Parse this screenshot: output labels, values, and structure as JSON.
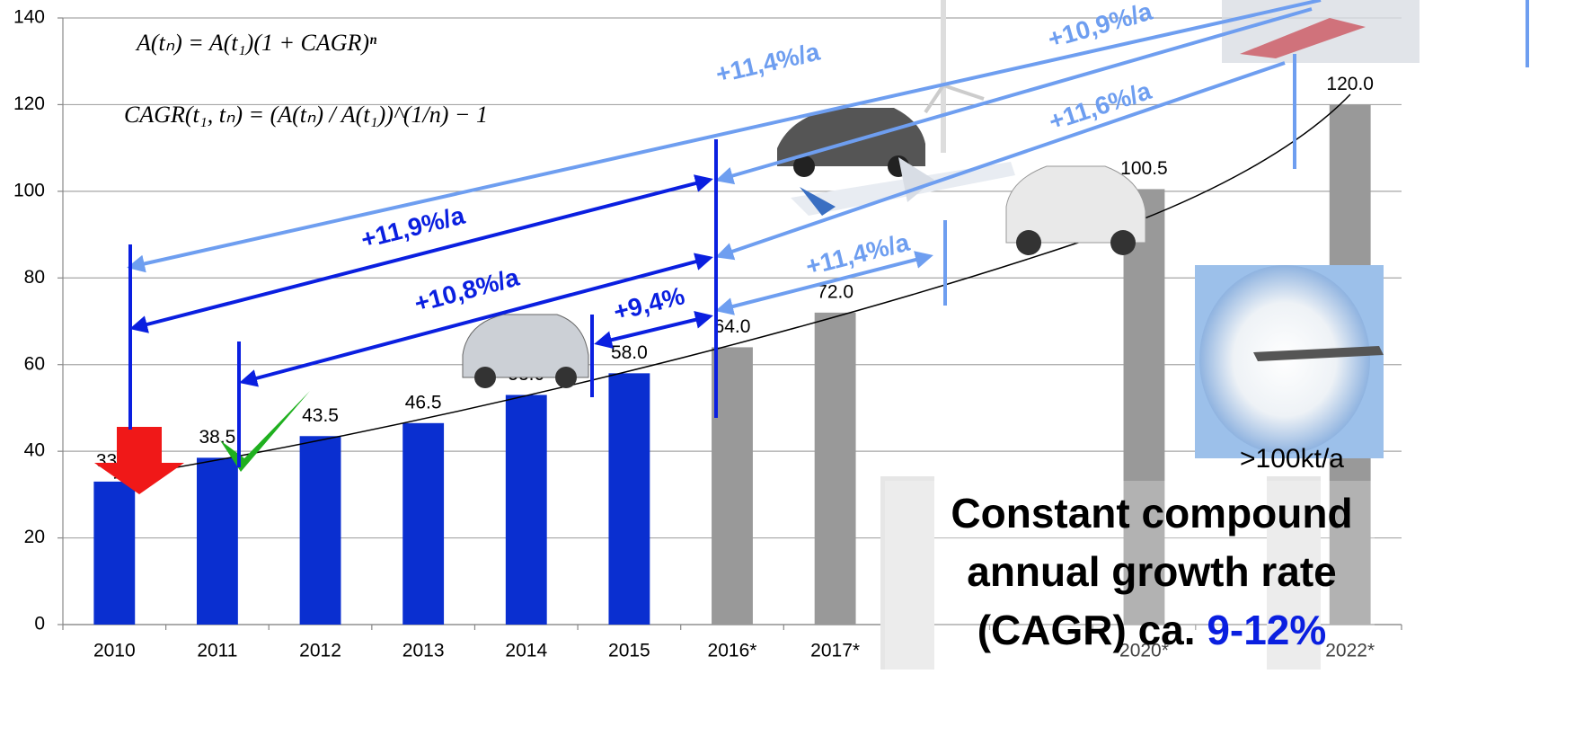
{
  "chart_data": {
    "type": "bar",
    "categories": [
      "2010",
      "2011",
      "2012",
      "2013",
      "2014",
      "2015",
      "2016*",
      "2017*",
      null,
      null,
      "2020*",
      null,
      "2022*"
    ],
    "values": [
      33,
      38.5,
      43.5,
      46.5,
      53,
      58,
      64,
      72,
      null,
      null,
      100.5,
      null,
      120
    ],
    "value_labels": [
      "33.0",
      "38.5",
      "43.5",
      "46.5",
      "53.0",
      "58.0",
      "64.0",
      "72.0",
      null,
      null,
      "100.5",
      null,
      "120.0"
    ],
    "colors": [
      "#0a2fd0",
      "#0a2fd0",
      "#0a2fd0",
      "#0a2fd0",
      "#0a2fd0",
      "#0a2fd0",
      "#999999",
      "#999999",
      "#999999",
      "#999999",
      "#999999",
      "#999999",
      "#999999"
    ],
    "ylim": [
      0,
      140
    ],
    "yticks": [
      0,
      20,
      40,
      60,
      80,
      100,
      120,
      140
    ],
    "grid": true,
    "annotations": {
      "formula_1": "A(tₙ) = A(t₁)(1 + CAGR)ⁿ",
      "formula_2": "CAGR(t₁, tₙ) = (A(tₙ) / A(t₁))^(1/n) − 1",
      "rate_2010_2022": "+11,4%/a",
      "rate_2015_2022": "+10,9%/a",
      "rate_2015_2020": "+11,6%/a",
      "rate_2015_2017": "+11,4%/a",
      "rate_2010_2015": "+11,9%/a",
      "rate_2011_2015": "+10,8%/a",
      "rate_2014_2015": "+9,4%",
      "capacity": ">100kt/a",
      "headline_1": "Constant compound",
      "headline_2": "annual growth rate",
      "headline_3": "(CAGR) ca. ",
      "headline_highlight": "9-12%"
    }
  }
}
